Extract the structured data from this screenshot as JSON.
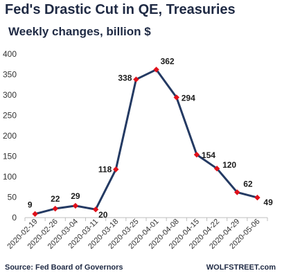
{
  "chart_data": {
    "type": "line",
    "title": "Fed's Drastic Cut in QE, Treasuries",
    "subtitle": "Weekly changes, billion $",
    "x": [
      "2020-02-19",
      "2020-02-26",
      "2020-03-04",
      "2020-03-11",
      "2020-03-18",
      "2020-03-25",
      "2020-04-01",
      "2020-04-08",
      "2020-04-15",
      "2020-04-22",
      "2020-04-29",
      "2020-05-06"
    ],
    "series": [
      {
        "values": [
          9,
          22,
          29,
          20,
          118,
          338,
          362,
          294,
          154,
          120,
          62,
          49
        ]
      }
    ],
    "data_labels": [
      "9",
      "22",
      "29",
      "20",
      "118",
      "338",
      "362",
      "294",
      "154",
      "120",
      "62",
      "49"
    ],
    "ylim": [
      0,
      400
    ],
    "yticks": [
      0,
      50,
      100,
      150,
      200,
      250,
      300,
      350,
      400
    ],
    "grid": false,
    "legend": "none",
    "line_color": "#243a63",
    "marker_color": "#e0101a",
    "source": "Source: Fed Board of Governors",
    "credit": "WOLFSTREET.com"
  }
}
